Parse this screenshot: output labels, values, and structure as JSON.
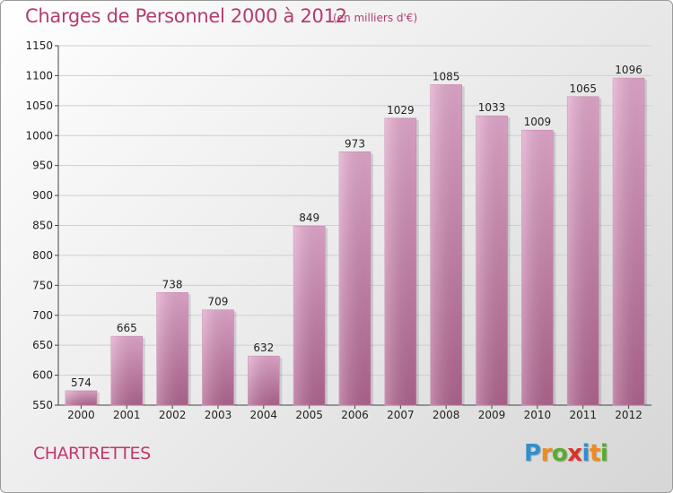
{
  "title": "Charges de Personnel 2000 à 2012",
  "subtitle": "(en milliers d'€)",
  "commune": "CHARTRETTES",
  "logo": {
    "text": "Proxiti",
    "letters": [
      "P",
      "r",
      "o",
      "x",
      "i",
      "t",
      "i"
    ],
    "colors": [
      "#2f8fd0",
      "#f08a1c",
      "#5aab2e",
      "#d8342b",
      "#2f8fd0",
      "#f08a1c",
      "#5aab2e"
    ]
  },
  "colors": {
    "bar_top": "#e3a8cd",
    "bar_bottom": "#b0648f",
    "title": "#b43c6e"
  },
  "chart_data": {
    "type": "bar",
    "title": "Charges de Personnel 2000 à 2012",
    "subtitle": "(en milliers d'€)",
    "categories": [
      "2000",
      "2001",
      "2002",
      "2003",
      "2004",
      "2005",
      "2006",
      "2007",
      "2008",
      "2009",
      "2010",
      "2011",
      "2012"
    ],
    "values": [
      574,
      665,
      738,
      709,
      632,
      849,
      973,
      1029,
      1085,
      1033,
      1009,
      1065,
      1096
    ],
    "ylim": [
      550,
      1150
    ],
    "yticks": [
      550,
      600,
      650,
      700,
      750,
      800,
      850,
      900,
      950,
      1000,
      1050,
      1100,
      1150
    ],
    "grid": true,
    "data_labels": true
  }
}
